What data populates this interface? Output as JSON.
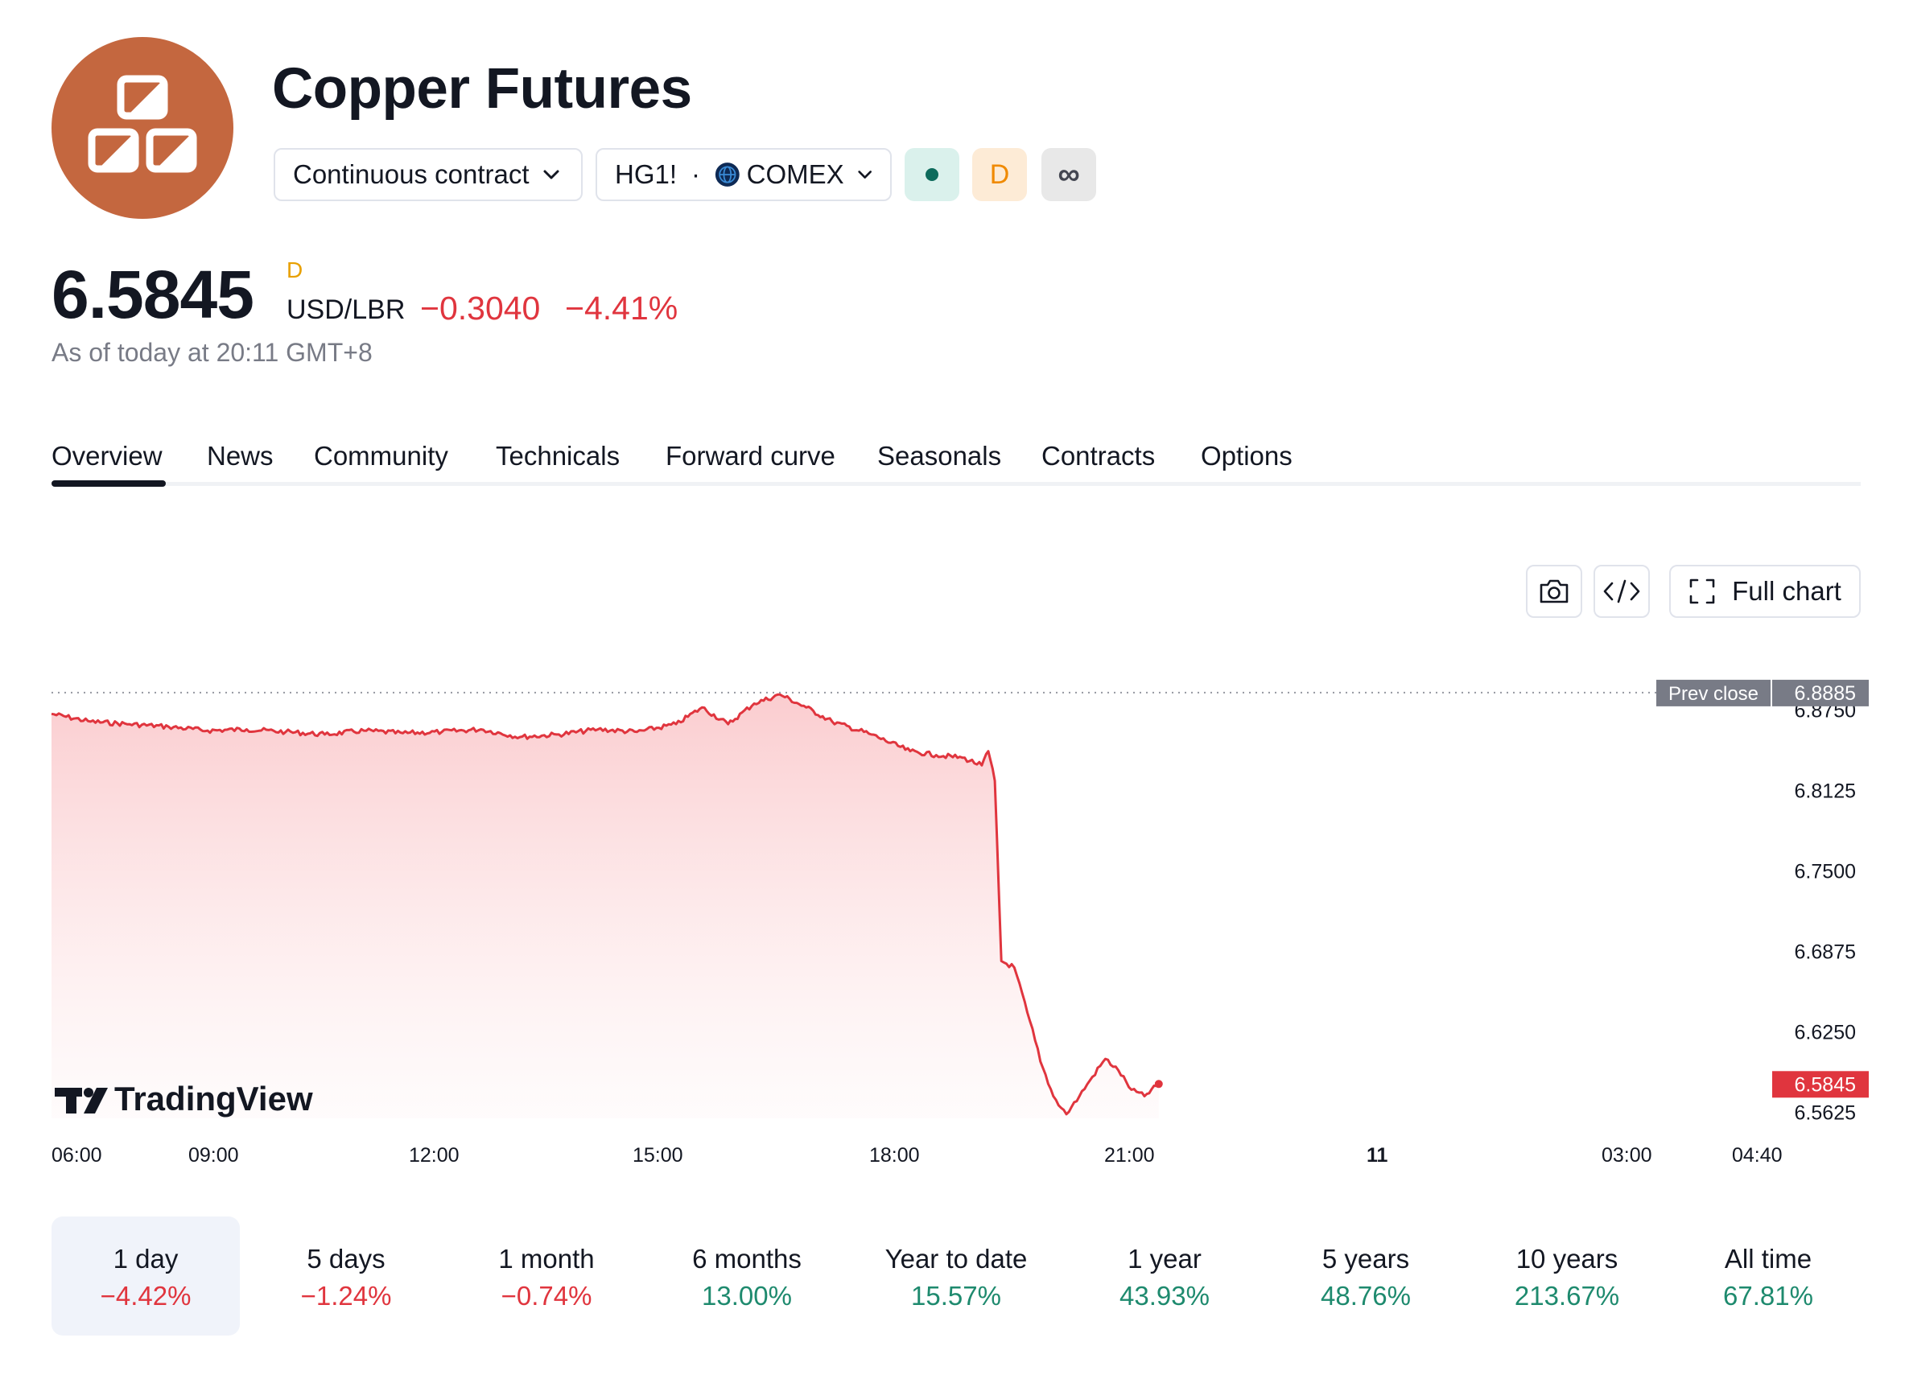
{
  "header": {
    "title": "Copper Futures",
    "contract_selector": "Continuous contract",
    "symbol": "HG1!",
    "separator": "·",
    "exchange": "COMEX",
    "badge_d": "D",
    "badge_infinity": "∞"
  },
  "quote": {
    "price": "6.5845",
    "price_flag": "D",
    "currency": "USD/LBR",
    "change": "−0.3040",
    "change_percent": "−4.41%",
    "as_of": "As of today at 20:11 GMT+8"
  },
  "tabs": [
    "Overview",
    "News",
    "Community",
    "Technicals",
    "Forward curve",
    "Seasonals",
    "Contracts",
    "Options"
  ],
  "toolbar": {
    "full_chart": "Full chart"
  },
  "chart_data": {
    "type": "area",
    "brand": "TradingView",
    "x_ticks": [
      "06:00",
      "09:00",
      "12:00",
      "15:00",
      "18:00",
      "21:00",
      "11",
      "03:00",
      "04:40"
    ],
    "y_ticks": [
      "6.8750",
      "6.8125",
      "6.7500",
      "6.6875",
      "6.6250",
      "6.5625"
    ],
    "ylim": [
      6.55,
      6.9
    ],
    "prev_close_label": "Prev close",
    "prev_close": "6.8885",
    "last_label": "6.5845",
    "line_color": "#e0353e",
    "points": [
      [
        "06:00",
        6.872
      ],
      [
        "06:30",
        6.866
      ],
      [
        "07:00",
        6.864
      ],
      [
        "07:30",
        6.862
      ],
      [
        "08:00",
        6.859
      ],
      [
        "08:30",
        6.86
      ],
      [
        "09:00",
        6.858
      ],
      [
        "09:30",
        6.856
      ],
      [
        "10:00",
        6.859
      ],
      [
        "10:30",
        6.857
      ],
      [
        "11:00",
        6.858
      ],
      [
        "11:30",
        6.86
      ],
      [
        "12:00",
        6.854
      ],
      [
        "12:30",
        6.856
      ],
      [
        "13:00",
        6.86
      ],
      [
        "13:30",
        6.858
      ],
      [
        "14:00",
        6.864
      ],
      [
        "14:20",
        6.877
      ],
      [
        "14:40",
        6.864
      ],
      [
        "15:00",
        6.88
      ],
      [
        "15:20",
        6.887
      ],
      [
        "15:40",
        6.877
      ],
      [
        "16:00",
        6.866
      ],
      [
        "16:30",
        6.856
      ],
      [
        "17:00",
        6.843
      ],
      [
        "17:20",
        6.84
      ],
      [
        "17:40",
        6.838
      ],
      [
        "17:55",
        6.832
      ],
      [
        "18:00",
        6.843
      ],
      [
        "18:05",
        6.82
      ],
      [
        "18:10",
        6.68
      ],
      [
        "18:20",
        6.675
      ],
      [
        "18:30",
        6.64
      ],
      [
        "18:40",
        6.602
      ],
      [
        "18:50",
        6.575
      ],
      [
        "19:00",
        6.561
      ],
      [
        "19:10",
        6.575
      ],
      [
        "19:20",
        6.59
      ],
      [
        "19:30",
        6.604
      ],
      [
        "19:40",
        6.595
      ],
      [
        "19:50",
        6.58
      ],
      [
        "20:00",
        6.575
      ],
      [
        "20:11",
        6.5845
      ]
    ]
  },
  "ranges": [
    {
      "label": "1 day",
      "value": "−4.42%"
    },
    {
      "label": "5 days",
      "value": "−1.24%"
    },
    {
      "label": "1 month",
      "value": "−0.74%"
    },
    {
      "label": "6 months",
      "value": "13.00%"
    },
    {
      "label": "Year to date",
      "value": "15.57%"
    },
    {
      "label": "1 year",
      "value": "43.93%"
    },
    {
      "label": "5 years",
      "value": "48.76%"
    },
    {
      "label": "10 years",
      "value": "213.67%"
    },
    {
      "label": "All time",
      "value": "67.81%"
    }
  ],
  "colors": {
    "negative": "#e0353e",
    "positive": "#1e8a6e",
    "logo": "#c4673f"
  }
}
